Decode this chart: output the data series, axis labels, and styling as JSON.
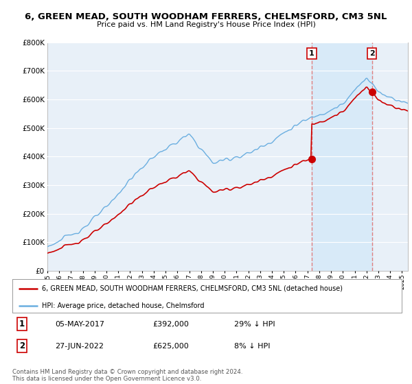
{
  "title": "6, GREEN MEAD, SOUTH WOODHAM FERRERS, CHELMSFORD, CM3 5NL",
  "subtitle": "Price paid vs. HM Land Registry's House Price Index (HPI)",
  "legend_line1": "6, GREEN MEAD, SOUTH WOODHAM FERRERS, CHELMSFORD, CM3 5NL (detached house)",
  "legend_line2": "HPI: Average price, detached house, Chelmsford",
  "transaction1_date": "05-MAY-2017",
  "transaction1_price": "£392,000",
  "transaction1_hpi": "29% ↓ HPI",
  "transaction2_date": "27-JUN-2022",
  "transaction2_price": "£625,000",
  "transaction2_hpi": "8% ↓ HPI",
  "copyright": "Contains HM Land Registry data © Crown copyright and database right 2024.\nThis data is licensed under the Open Government Licence v3.0.",
  "hpi_color": "#6aaee0",
  "price_color": "#cc0000",
  "vline_color": "#e08080",
  "shade_color": "#d8eaf8",
  "plot_bg": "#e8f0f8",
  "grid_color": "#ffffff",
  "ylim": [
    0,
    800000
  ],
  "yticks": [
    0,
    100000,
    200000,
    300000,
    400000,
    500000,
    600000,
    700000,
    800000
  ],
  "t1_year": 2017.37,
  "t2_year": 2022.46,
  "price_t1": 392000,
  "price_t2": 625000
}
